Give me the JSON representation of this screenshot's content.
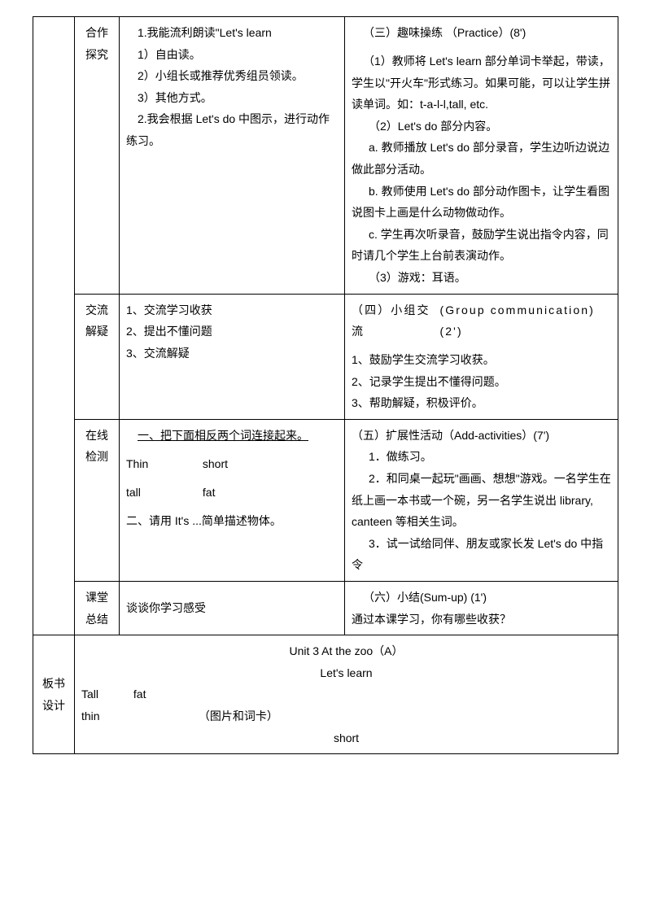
{
  "rows": {
    "cooperate": {
      "stage": "合作\n探究",
      "student": {
        "l1": "1.我能流利朗读\"Let's learn",
        "l2": "1）自由读。",
        "l3": "2）小组长或推荐优秀组员领读。",
        "l4": "3）其他方式。",
        "l5": "2.我会根据 Let's do 中图示，进行动作练习。"
      },
      "teacher": {
        "t1": "（三）趣味操练 （Practice）(8')",
        "t2": "（1）教师将 Let's learn 部分单词卡举起，带读，学生以\"开火车\"形式练习。如果可能，可以让学生拼读单词。如：t-a-l-l,tall, etc.",
        "t3": "（2）Let's do 部分内容。",
        "t4": "a. 教师播放 Let's do 部分录音，学生边听边说边做此部分活动。",
        "t5": "b. 教师使用 Let's do 部分动作图卡，让学生看图说图卡上画是什么动物做动作。",
        "t6": "c. 学生再次听录音，鼓励学生说出指令内容，同时请几个学生上台前表演动作。",
        "t7": "（3）游戏：耳语。"
      }
    },
    "exchange": {
      "stage": "交流\n解疑",
      "student": {
        "l1": "1、交流学习收获",
        "l2": "2、提出不懂问题",
        "l3": "3、交流解疑"
      },
      "teacher": {
        "t1a": "（四）小组交流",
        "t1b": "(Group communication)(2')",
        "t2": "1、鼓励学生交流学习收获。",
        "t3": "2、记录学生提出不懂得问题。",
        "t4": "3、帮助解疑，积极评价。"
      }
    },
    "test": {
      "stage": "在线\n检测",
      "student": {
        "l1": "一、把下面相反两个词连接起来。",
        "pair1a": "Thin",
        "pair1b": "short",
        "pair2a": "tall",
        "pair2b": "fat",
        "l2": "二、请用 It's ...简单描述物体。"
      },
      "teacher": {
        "t1": "（五）扩展性活动（Add-activities）(7')",
        "t2": "1．做练习。",
        "t3": "2．和同桌一起玩\"画画、想想\"游戏。一名学生在纸上画一本书或一个碗，另一名学生说出 library, canteen 等相关生词。",
        "t4": "3．试一试给同伴、朋友或家长发 Let's do 中指令"
      }
    },
    "summary": {
      "stage": "课堂\n总结",
      "student": "谈谈你学习感受",
      "teacher": {
        "t1": "（六）小结(Sum-up) (1')",
        "t2": "通过本课学习，你有哪些收获？"
      }
    },
    "board": {
      "label": "板书\n设计",
      "title1": "Unit 3    At the zoo（A）",
      "title2": "Let's    learn",
      "line1a": "Tall",
      "line1b": "fat",
      "line2a": "thin",
      "line2b": "（图片和词卡）",
      "line3": "short"
    }
  }
}
